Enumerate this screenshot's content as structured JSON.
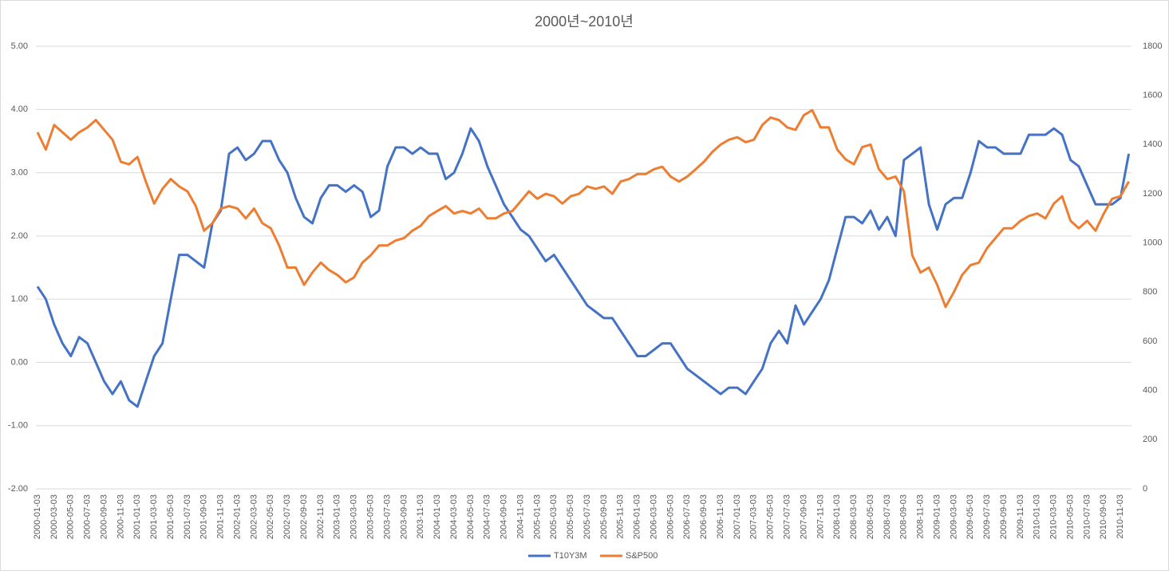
{
  "chart_data": {
    "type": "line",
    "title": "2000년~2010년",
    "categories": [
      "2000-01-03",
      null,
      "2000-03-03",
      null,
      "2000-05-03",
      null,
      "2000-07-03",
      null,
      "2000-09-03",
      null,
      "2000-11-03",
      null,
      "2001-01-03",
      null,
      "2001-03-03",
      null,
      "2001-05-03",
      null,
      "2001-07-03",
      null,
      "2001-09-03",
      null,
      "2001-11-03",
      null,
      "2002-01-03",
      null,
      "2002-03-03",
      null,
      "2002-05-03",
      null,
      "2002-07-03",
      null,
      "2002-09-03",
      null,
      "2002-11-03",
      null,
      "2003-01-03",
      null,
      "2003-03-03",
      null,
      "2003-05-03",
      null,
      "2003-07-03",
      null,
      "2003-09-03",
      null,
      "2003-11-03",
      null,
      "2004-01-03",
      null,
      "2004-03-03",
      null,
      "2004-05-03",
      null,
      "2004-07-03",
      null,
      "2004-09-03",
      null,
      "2004-11-03",
      null,
      "2005-01-03",
      null,
      "2005-03-03",
      null,
      "2005-05-03",
      null,
      "2005-07-03",
      null,
      "2005-09-03",
      null,
      "2005-11-03",
      null,
      "2006-01-03",
      null,
      "2006-03-03",
      null,
      "2006-05-03",
      null,
      "2006-07-03",
      null,
      "2006-09-03",
      null,
      "2006-11-03",
      null,
      "2007-01-03",
      null,
      "2007-03-03",
      null,
      "2007-05-03",
      null,
      "2007-07-03",
      null,
      "2007-09-03",
      null,
      "2007-11-03",
      null,
      "2008-01-03",
      null,
      "2008-03-03",
      null,
      "2008-05-03",
      null,
      "2008-07-03",
      null,
      "2008-09-03",
      null,
      "2008-11-03",
      null,
      "2009-01-03",
      null,
      "2009-03-03",
      null,
      "2009-05-03",
      null,
      "2009-07-03",
      null,
      "2009-09-03",
      null,
      "2009-11-03",
      null,
      "2010-01-03",
      null,
      "2010-03-03",
      null,
      "2010-05-03",
      null,
      "2010-07-03",
      null,
      "2010-09-03",
      null,
      "2010-11-03",
      null
    ],
    "series": [
      {
        "name": "T10Y3M",
        "color": "#4472c4",
        "values": [
          1.2,
          1.0,
          0.6,
          0.3,
          0.1,
          0.4,
          0.3,
          0.0,
          -0.3,
          -0.5,
          -0.3,
          -0.6,
          -0.7,
          -0.3,
          0.1,
          0.3,
          1.0,
          1.7,
          1.7,
          1.6,
          1.5,
          2.2,
          2.4,
          3.3,
          3.4,
          3.2,
          3.3,
          3.5,
          3.5,
          3.2,
          3.0,
          2.6,
          2.3,
          2.2,
          2.6,
          2.8,
          2.8,
          2.7,
          2.8,
          2.7,
          2.3,
          2.4,
          3.1,
          3.4,
          3.4,
          3.3,
          3.4,
          3.3,
          3.3,
          2.9,
          3.0,
          3.3,
          3.7,
          3.5,
          3.1,
          2.8,
          2.5,
          2.3,
          2.1,
          2.0,
          1.8,
          1.6,
          1.7,
          1.5,
          1.3,
          1.1,
          0.9,
          0.8,
          0.7,
          0.7,
          0.5,
          0.3,
          0.1,
          0.1,
          0.2,
          0.3,
          0.3,
          0.1,
          -0.1,
          -0.2,
          -0.3,
          -0.4,
          -0.5,
          -0.4,
          -0.4,
          -0.5,
          -0.3,
          -0.1,
          0.3,
          0.5,
          0.3,
          0.9,
          0.6,
          0.8,
          1.0,
          1.3,
          1.8,
          2.3,
          2.3,
          2.2,
          2.4,
          2.1,
          2.3,
          2.0,
          3.2,
          3.3,
          3.4,
          2.5,
          2.1,
          2.5,
          2.6,
          2.6,
          3.0,
          3.5,
          3.4,
          3.4,
          3.3,
          3.3,
          3.3,
          3.6,
          3.6,
          3.6,
          3.7,
          3.6,
          3.2,
          3.1,
          2.8,
          2.5,
          2.5,
          2.5,
          2.6,
          3.3
        ]
      },
      {
        "name": "S&P500",
        "color": "#ed7d31",
        "axis": "y2",
        "values": [
          1450,
          1380,
          1480,
          1450,
          1420,
          1450,
          1470,
          1500,
          1460,
          1420,
          1330,
          1320,
          1350,
          1250,
          1160,
          1220,
          1260,
          1230,
          1210,
          1150,
          1050,
          1080,
          1140,
          1150,
          1140,
          1100,
          1140,
          1080,
          1060,
          990,
          900,
          900,
          830,
          880,
          920,
          890,
          870,
          840,
          860,
          920,
          950,
          990,
          990,
          1010,
          1020,
          1050,
          1070,
          1110,
          1130,
          1150,
          1120,
          1130,
          1120,
          1140,
          1100,
          1100,
          1120,
          1130,
          1170,
          1210,
          1180,
          1200,
          1190,
          1160,
          1190,
          1200,
          1230,
          1220,
          1230,
          1200,
          1250,
          1260,
          1280,
          1280,
          1300,
          1310,
          1270,
          1250,
          1270,
          1300,
          1330,
          1370,
          1400,
          1420,
          1430,
          1410,
          1420,
          1480,
          1510,
          1500,
          1470,
          1460,
          1520,
          1540,
          1470,
          1470,
          1380,
          1340,
          1320,
          1390,
          1400,
          1300,
          1260,
          1270,
          1210,
          950,
          880,
          900,
          830,
          740,
          800,
          870,
          910,
          920,
          980,
          1020,
          1060,
          1060,
          1090,
          1110,
          1120,
          1100,
          1160,
          1190,
          1090,
          1060,
          1090,
          1050,
          1120,
          1180,
          1190,
          1250
        ]
      }
    ],
    "ylim": [
      -2,
      5
    ],
    "yticks": [
      {
        "value": -2,
        "label": "-2.00"
      },
      {
        "value": -1,
        "label": "-1.00"
      },
      {
        "value": 0,
        "label": "0.00"
      },
      {
        "value": 1,
        "label": "1.00"
      },
      {
        "value": 2,
        "label": "2.00"
      },
      {
        "value": 3,
        "label": "3.00"
      },
      {
        "value": 4,
        "label": "4.00"
      },
      {
        "value": 5,
        "label": "5.00"
      }
    ],
    "y2lim": [
      0,
      1800
    ],
    "y2ticks": [
      0,
      200,
      400,
      600,
      800,
      1000,
      1200,
      1400,
      1600,
      1800
    ],
    "grid": true,
    "legend": "bottom"
  }
}
